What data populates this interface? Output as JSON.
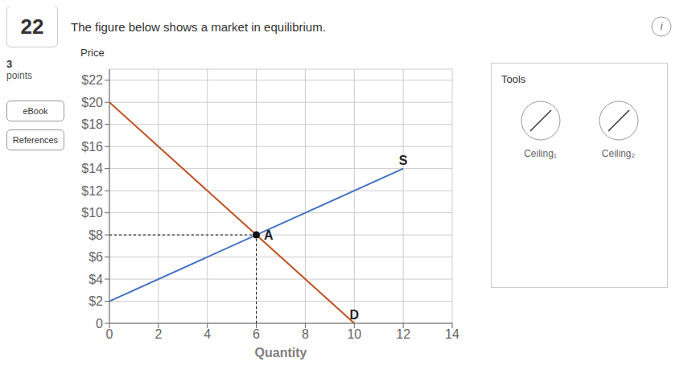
{
  "chart_data": {
    "type": "line",
    "title": "The figure below shows a market in equilibrium.",
    "x_label": "Quantity",
    "y_label": "Price",
    "xlim": [
      0,
      14
    ],
    "ylim": [
      0,
      23
    ],
    "xticks": [
      0,
      2,
      4,
      6,
      8,
      10,
      12,
      14
    ],
    "yticks": [
      0,
      {
        "value": 2,
        "label": "$2"
      },
      {
        "value": 4,
        "label": "$4"
      },
      {
        "value": 6,
        "label": "$6"
      },
      {
        "value": 8,
        "label": "$8"
      },
      {
        "value": 10,
        "label": "$10"
      },
      {
        "value": 12,
        "label": "$12"
      },
      {
        "value": 14,
        "label": "$14"
      },
      {
        "value": 16,
        "label": "$16"
      },
      {
        "value": 18,
        "label": "$18"
      },
      {
        "value": 20,
        "label": "$20"
      },
      {
        "value": 22,
        "label": "$22"
      }
    ],
    "grid": true,
    "series": [
      {
        "name": "S",
        "color": "#4472C4",
        "x": [
          0,
          12
        ],
        "values": [
          2,
          14
        ]
      },
      {
        "name": "D",
        "color": "#C05020",
        "x": [
          0,
          10
        ],
        "values": [
          20,
          0
        ]
      },
      {
        "name": "A",
        "type": "scatter",
        "color": "#111111",
        "x": [
          6
        ],
        "values": [
          8
        ]
      }
    ],
    "annotations": [
      "22",
      "3",
      "points",
      "eBook",
      "References",
      "Tools",
      "Ceiling₁",
      "Ceiling₂",
      "i"
    ]
  }
}
